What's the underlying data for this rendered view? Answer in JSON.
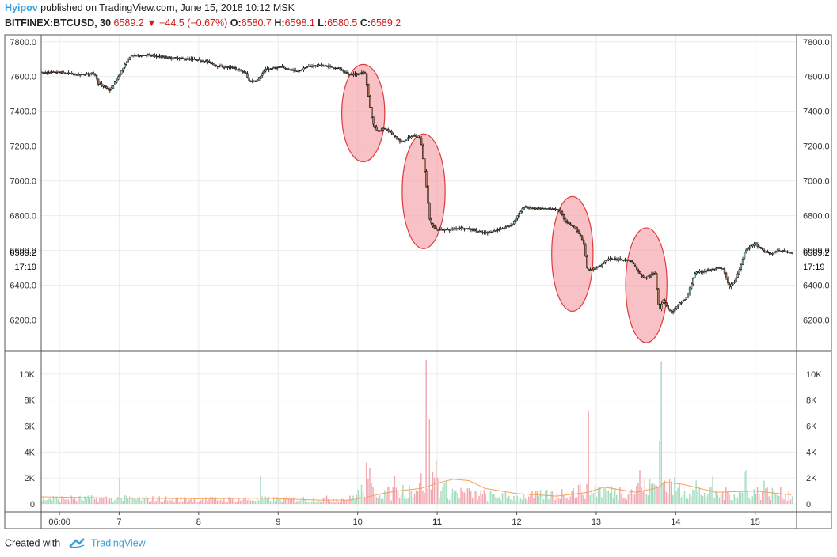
{
  "header": {
    "author": "Hyipov",
    "published_text": "published on TradingView.com, June 15, 2018 10:12 MSK",
    "symbol": "BITFINEX:BTCUSD, 30",
    "last_price": "6589.2",
    "change": "−44.5 (−0.67%)",
    "open_label": "O:",
    "open_value": "6580.7",
    "high_label": "H:",
    "high_value": "6598.1",
    "low_label": "L:",
    "low_value": "6580.5",
    "close_label": "C:",
    "close_value": "6589.2"
  },
  "footer": {
    "created_with": "Created with",
    "brand": "TradingView"
  },
  "colors": {
    "up_candle": "#9fd8b8",
    "down_candle": "#b07a60",
    "candle_outline": "#000000",
    "vol_up": "#a8dcc0",
    "vol_down": "#f2a8b0",
    "vol_ma": "#f5a25a",
    "highlight_fill": "#f5a0a8",
    "highlight_stroke": "#e03a3a",
    "grid": "#ececec"
  },
  "chart_data": {
    "type": "candlestick",
    "price_ticks": [
      "7800.0",
      "7600.0",
      "7400.0",
      "7200.0",
      "7000.0",
      "6800.0",
      "6600.0",
      "6400.0",
      "6200.0"
    ],
    "price_ylim": [
      6020,
      7840
    ],
    "volume_ticks": [
      "10K",
      "8K",
      "6K",
      "4K",
      "2K",
      "0"
    ],
    "volume_ylim": [
      0,
      12000
    ],
    "x_ticks": [
      "06:00",
      "7",
      "8",
      "9",
      "10",
      "11",
      "12",
      "13",
      "14",
      "15"
    ],
    "x_tick_days": [
      6.25,
      7,
      8,
      9,
      10,
      11,
      12,
      13,
      14,
      15
    ],
    "x_range_days": [
      6.02,
      15.52
    ],
    "bold_tick": "11",
    "last_price_label": "6589.2",
    "countdown_label": "17:19",
    "price_path": [
      [
        6.02,
        7620
      ],
      [
        6.25,
        7625
      ],
      [
        6.5,
        7610
      ],
      [
        6.7,
        7620
      ],
      [
        6.75,
        7560
      ],
      [
        6.9,
        7520
      ],
      [
        7.0,
        7600
      ],
      [
        7.15,
        7720
      ],
      [
        7.35,
        7725
      ],
      [
        7.6,
        7710
      ],
      [
        7.9,
        7700
      ],
      [
        8.1,
        7690
      ],
      [
        8.25,
        7660
      ],
      [
        8.45,
        7650
      ],
      [
        8.6,
        7620
      ],
      [
        8.65,
        7570
      ],
      [
        8.75,
        7580
      ],
      [
        8.85,
        7640
      ],
      [
        9.05,
        7655
      ],
      [
        9.25,
        7630
      ],
      [
        9.4,
        7660
      ],
      [
        9.55,
        7665
      ],
      [
        9.75,
        7650
      ],
      [
        9.9,
        7610
      ],
      [
        10.0,
        7615
      ],
      [
        10.1,
        7630
      ],
      [
        10.15,
        7470
      ],
      [
        10.2,
        7330
      ],
      [
        10.25,
        7290
      ],
      [
        10.35,
        7300
      ],
      [
        10.45,
        7270
      ],
      [
        10.55,
        7220
      ],
      [
        10.7,
        7260
      ],
      [
        10.8,
        7250
      ],
      [
        10.87,
        6990
      ],
      [
        10.92,
        6760
      ],
      [
        11.0,
        6720
      ],
      [
        11.15,
        6720
      ],
      [
        11.3,
        6730
      ],
      [
        11.45,
        6720
      ],
      [
        11.6,
        6700
      ],
      [
        11.8,
        6720
      ],
      [
        11.95,
        6750
      ],
      [
        12.1,
        6850
      ],
      [
        12.25,
        6840
      ],
      [
        12.45,
        6840
      ],
      [
        12.55,
        6830
      ],
      [
        12.62,
        6770
      ],
      [
        12.75,
        6730
      ],
      [
        12.85,
        6650
      ],
      [
        12.9,
        6480
      ],
      [
        13.05,
        6510
      ],
      [
        13.15,
        6550
      ],
      [
        13.3,
        6550
      ],
      [
        13.45,
        6540
      ],
      [
        13.55,
        6470
      ],
      [
        13.62,
        6440
      ],
      [
        13.75,
        6470
      ],
      [
        13.8,
        6250
      ],
      [
        13.85,
        6320
      ],
      [
        13.95,
        6240
      ],
      [
        14.05,
        6290
      ],
      [
        14.15,
        6330
      ],
      [
        14.25,
        6470
      ],
      [
        14.45,
        6490
      ],
      [
        14.6,
        6500
      ],
      [
        14.68,
        6390
      ],
      [
        14.75,
        6420
      ],
      [
        14.82,
        6500
      ],
      [
        14.88,
        6600
      ],
      [
        15.0,
        6640
      ],
      [
        15.1,
        6600
      ],
      [
        15.2,
        6580
      ],
      [
        15.3,
        6600
      ],
      [
        15.45,
        6590
      ]
    ],
    "volume_anchors": [
      [
        6.0,
        400
      ],
      [
        7.0,
        400
      ],
      [
        8.0,
        350
      ],
      [
        9.0,
        350
      ],
      [
        9.9,
        400
      ],
      [
        10.1,
        1200
      ],
      [
        10.4,
        800
      ],
      [
        10.7,
        1200
      ],
      [
        10.9,
        2000
      ],
      [
        11.1,
        1000
      ],
      [
        11.5,
        700
      ],
      [
        12.0,
        500
      ],
      [
        12.6,
        800
      ],
      [
        12.9,
        1200
      ],
      [
        13.2,
        900
      ],
      [
        13.6,
        1200
      ],
      [
        13.8,
        1500
      ],
      [
        14.0,
        1200
      ],
      [
        14.5,
        700
      ],
      [
        15.0,
        900
      ],
      [
        15.5,
        700
      ]
    ],
    "volume_spikes": [
      [
        7.0,
        2000,
        "up"
      ],
      [
        8.78,
        2200,
        "up"
      ],
      [
        10.1,
        3200,
        "down"
      ],
      [
        10.15,
        2800,
        "down"
      ],
      [
        10.45,
        2200,
        "down"
      ],
      [
        10.85,
        11100,
        "down"
      ],
      [
        10.9,
        6500,
        "down"
      ],
      [
        10.97,
        3300,
        "down"
      ],
      [
        11.1,
        1800,
        "up"
      ],
      [
        12.9,
        7200,
        "down"
      ],
      [
        13.55,
        2600,
        "down"
      ],
      [
        13.8,
        4800,
        "down"
      ],
      [
        13.82,
        11000,
        "up"
      ],
      [
        14.25,
        1800,
        "up"
      ],
      [
        14.45,
        2100,
        "up"
      ],
      [
        14.85,
        2500,
        "up"
      ],
      [
        14.87,
        2600,
        "up"
      ],
      [
        15.1,
        1800,
        "up"
      ]
    ],
    "volume_ma": [
      [
        6.02,
        550
      ],
      [
        7.0,
        450
      ],
      [
        7.5,
        430
      ],
      [
        8.0,
        400
      ],
      [
        8.8,
        450
      ],
      [
        9.5,
        300
      ],
      [
        9.9,
        300
      ],
      [
        10.1,
        500
      ],
      [
        10.3,
        800
      ],
      [
        10.5,
        1000
      ],
      [
        10.8,
        1200
      ],
      [
        11.0,
        1600
      ],
      [
        11.2,
        1900
      ],
      [
        11.4,
        1800
      ],
      [
        11.6,
        1200
      ],
      [
        12.0,
        800
      ],
      [
        12.5,
        600
      ],
      [
        12.9,
        900
      ],
      [
        13.1,
        1300
      ],
      [
        13.5,
        900
      ],
      [
        13.8,
        1300
      ],
      [
        13.85,
        1700
      ],
      [
        14.1,
        1500
      ],
      [
        14.5,
        900
      ],
      [
        15.0,
        1000
      ],
      [
        15.3,
        800
      ],
      [
        15.45,
        700
      ]
    ],
    "highlights": [
      {
        "day": 10.07,
        "price_center": 7390,
        "day_radius": 0.27,
        "price_radius": 280
      },
      {
        "day": 10.83,
        "price_center": 6940,
        "day_radius": 0.27,
        "price_radius": 330
      },
      {
        "day": 12.7,
        "price_center": 6580,
        "day_radius": 0.26,
        "price_radius": 330
      },
      {
        "day": 13.63,
        "price_center": 6400,
        "day_radius": 0.26,
        "price_radius": 330
      }
    ]
  }
}
